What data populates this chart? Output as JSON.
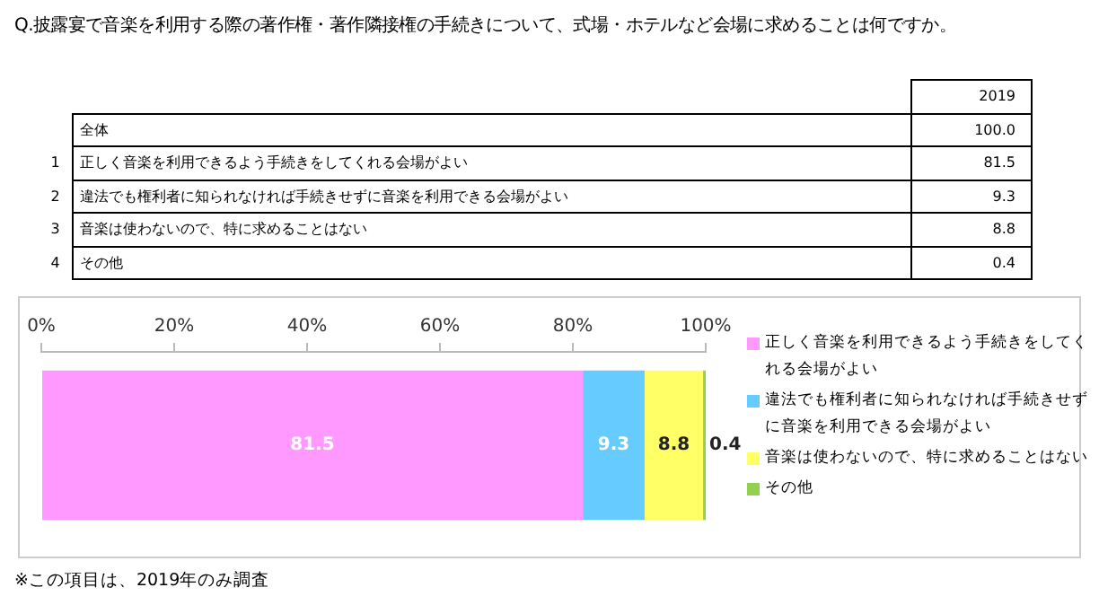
{
  "chart_data": {
    "type": "bar",
    "orientation": "horizontal",
    "stacked": true,
    "title": "Q.披露宴で音楽を利用する際の著作権・著作隣接権の手続きについて、式場・ホテルなど会場に求めることは何ですか。",
    "categories": [
      null
    ],
    "series": [
      {
        "name": "正しく音楽を利用できるよう手続きをしてくれる会場がよい",
        "color": "#ff99ff",
        "values": [
          81.5
        ]
      },
      {
        "name": "違法でも権利者に知られなければ手続きせずに音楽を利用できる会場がよい",
        "color": "#66ccff",
        "values": [
          9.3
        ]
      },
      {
        "name": "音楽は使わないので、特に求めることはない",
        "color": "#ffff66",
        "values": [
          8.8
        ]
      },
      {
        "name": "その他",
        "color": "#92d050",
        "values": [
          0.4
        ]
      }
    ],
    "xlim": [
      0,
      100
    ],
    "xticks": [
      {
        "value": 0,
        "label": "0%"
      },
      {
        "value": 20,
        "label": "20%"
      },
      {
        "value": 40,
        "label": "40%"
      },
      {
        "value": 60,
        "label": "60%"
      },
      {
        "value": 80,
        "label": "80%"
      },
      {
        "value": 100,
        "label": "100%"
      }
    ],
    "grid": false,
    "legend": "right",
    "data_labels": true,
    "annotations": [
      "2019",
      "全体",
      "100.0",
      "1",
      "81.5",
      "2",
      "9.3",
      "3",
      "8.8",
      "4",
      "0.4",
      "※この項目は、2019年のみ調査"
    ]
  }
}
